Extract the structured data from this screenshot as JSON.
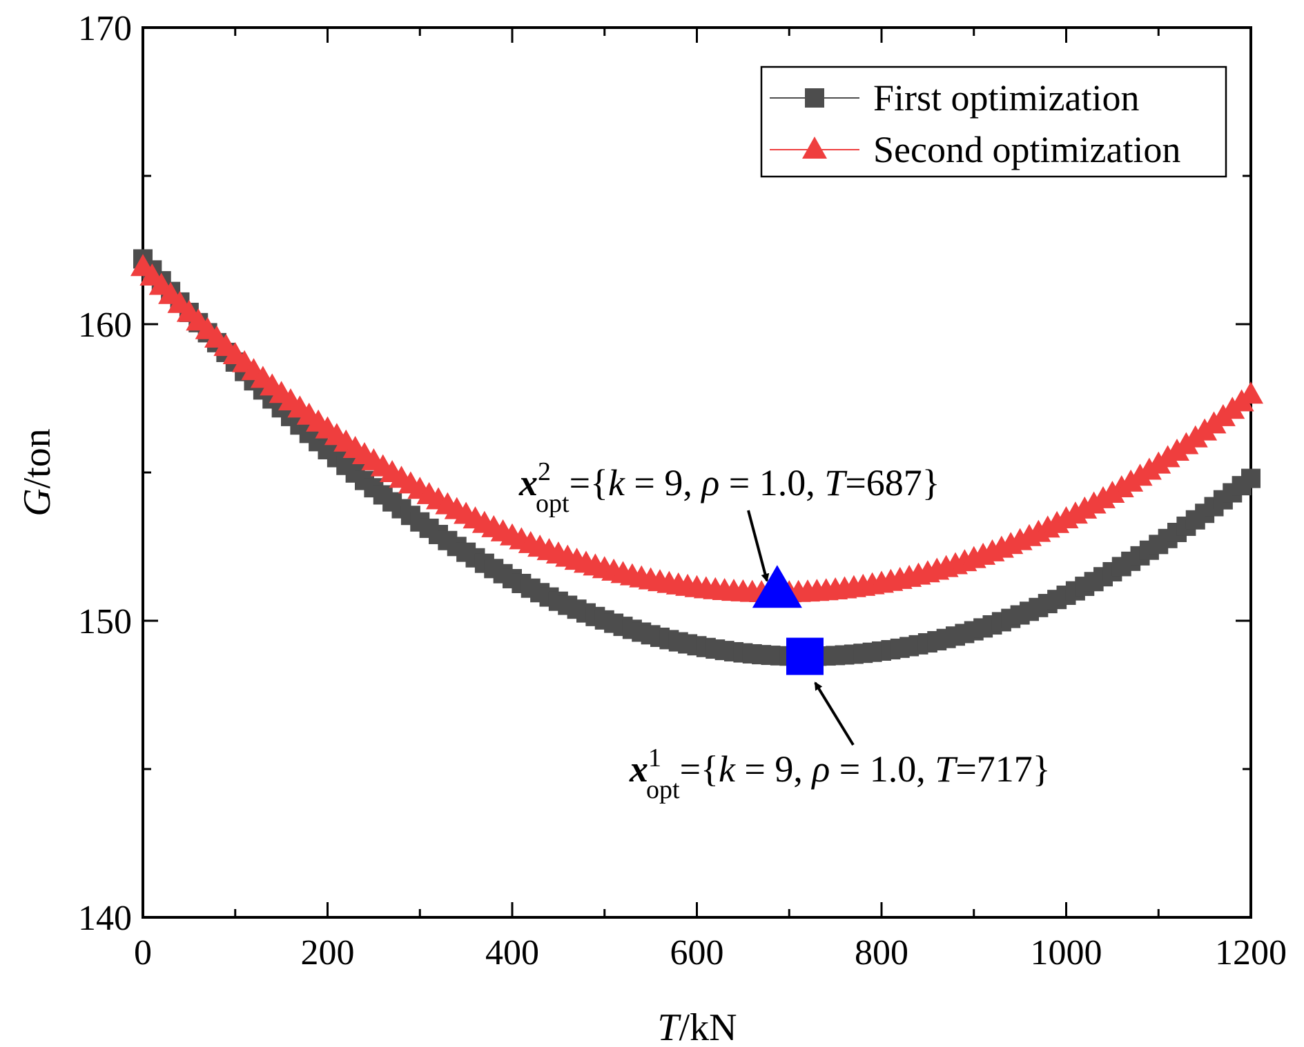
{
  "chart_data": {
    "type": "scatter",
    "title": "",
    "xlabel": {
      "var": "T",
      "unit": "/kN"
    },
    "ylabel": {
      "var": "G",
      "unit": "/ton"
    },
    "xlim": [
      0,
      1200
    ],
    "ylim": [
      140,
      170
    ],
    "xticks": [
      0,
      200,
      400,
      600,
      800,
      1000,
      1200
    ],
    "xtick_labels": [
      "0",
      "200",
      "400",
      "600",
      "800",
      "1000",
      "1200"
    ],
    "yticks": [
      140,
      150,
      160,
      170
    ],
    "ytick_labels": [
      "140",
      "150",
      "160",
      "170"
    ],
    "grid": false,
    "legend": {
      "placement": "top-right",
      "entries": [
        {
          "label": "First optimization",
          "marker": "square",
          "color": "#4d4d4d"
        },
        {
          "label": "Second optimization",
          "marker": "triangle",
          "color": "#ef3e3e"
        }
      ]
    },
    "series": [
      {
        "name": "First optimization",
        "marker": "square",
        "color": "#4d4d4d",
        "x_start": 0,
        "x_end": 1200,
        "x_step": 10,
        "curve": {
          "model": "piecewise-quadratic",
          "x_min": 717,
          "y_min": 148.8,
          "y_at_x0": 162.2,
          "y_at_xmax": 154.8
        },
        "points": [
          [
            0,
            162.2
          ],
          [
            100,
            158.4
          ],
          [
            200,
            155.3
          ],
          [
            300,
            152.9
          ],
          [
            400,
            151.0
          ],
          [
            500,
            149.7
          ],
          [
            600,
            149.0
          ],
          [
            717,
            148.8
          ],
          [
            800,
            149.0
          ],
          [
            900,
            149.6
          ],
          [
            1000,
            150.9
          ],
          [
            1100,
            152.6
          ],
          [
            1200,
            154.8
          ]
        ]
      },
      {
        "name": "Second optimization",
        "marker": "triangle",
        "color": "#ef3e3e",
        "x_start": 0,
        "x_end": 1200,
        "x_step": 10,
        "curve": {
          "model": "piecewise-quadratic",
          "x_min": 687,
          "y_min": 150.9,
          "y_at_x0": 161.9,
          "y_at_xmax": 157.6
        },
        "points": [
          [
            0,
            161.9
          ],
          [
            100,
            158.9
          ],
          [
            200,
            156.4
          ],
          [
            300,
            154.4
          ],
          [
            400,
            152.9
          ],
          [
            500,
            151.8
          ],
          [
            600,
            151.1
          ],
          [
            687,
            150.9
          ],
          [
            800,
            151.4
          ],
          [
            900,
            152.3
          ],
          [
            1000,
            153.6
          ],
          [
            1100,
            155.3
          ],
          [
            1200,
            157.6
          ]
        ]
      }
    ],
    "highlights": [
      {
        "series": "First optimization",
        "x": 717,
        "y": 148.8,
        "marker": "square",
        "color": "#0000ff"
      },
      {
        "series": "Second optimization",
        "x": 687,
        "y": 150.9,
        "marker": "triangle",
        "color": "#0000ff"
      }
    ],
    "annotations": [
      {
        "symbol": "x",
        "superscript": "2",
        "subscript": "opt",
        "text_prefix": "={",
        "k_label": "k",
        "k_text": " = 9, ",
        "rho_label": "ρ",
        "rho_text": " = 1.0, ",
        "T_label": "T",
        "T_value": "=687}"
      },
      {
        "symbol": "x",
        "superscript": "1",
        "subscript": "opt",
        "text_prefix": "={",
        "k_label": "k",
        "k_text": " = 9, ",
        "rho_label": "ρ",
        "rho_text": " = 1.0, ",
        "T_label": "T",
        "T_value": "=717}"
      }
    ]
  }
}
